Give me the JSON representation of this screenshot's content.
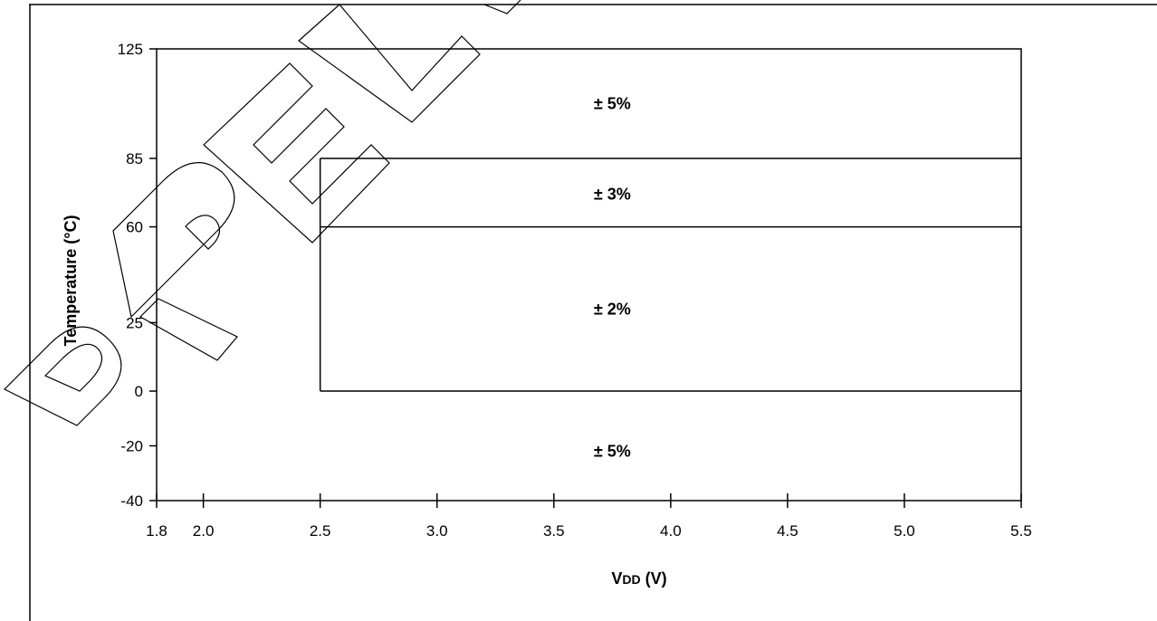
{
  "chart_data": {
    "type": "area",
    "xlabel": "VDD (V)",
    "xlabel_main": "V",
    "xlabel_sub": "DD",
    "xlabel_unit": " (V)",
    "ylabel": "Temperature (°C)",
    "xlim": [
      1.8,
      5.5
    ],
    "ylim": [
      -40,
      125
    ],
    "x_ticks": [
      {
        "value": 1.8,
        "label": "1.8"
      },
      {
        "value": 2.0,
        "label": "2.0"
      },
      {
        "value": 2.5,
        "label": "2.5"
      },
      {
        "value": 3.0,
        "label": "3.0"
      },
      {
        "value": 3.5,
        "label": "3.5"
      },
      {
        "value": 4.0,
        "label": "4.0"
      },
      {
        "value": 4.5,
        "label": "4.5"
      },
      {
        "value": 5.0,
        "label": "5.0"
      },
      {
        "value": 5.5,
        "label": "5.5"
      }
    ],
    "y_ticks": [
      {
        "value": 125,
        "label": "125"
      },
      {
        "value": 85,
        "label": "85"
      },
      {
        "value": 60,
        "label": "60"
      },
      {
        "value": 25,
        "label": "25"
      },
      {
        "value": 0,
        "label": "0"
      },
      {
        "value": -20,
        "label": "-20"
      },
      {
        "value": -40,
        "label": "-40"
      }
    ],
    "regions": [
      {
        "label": "± 5%",
        "x": [
          1.8,
          5.5
        ],
        "y": [
          85,
          125
        ],
        "label_at": [
          3.75,
          105
        ]
      },
      {
        "label": "± 3%",
        "x": [
          2.5,
          5.5
        ],
        "y": [
          60,
          85
        ],
        "label_at": [
          3.75,
          72
        ]
      },
      {
        "label": "± 2%",
        "x": [
          2.5,
          5.5
        ],
        "y": [
          0,
          60
        ],
        "label_at": [
          3.75,
          30
        ]
      },
      {
        "label": "± 5%",
        "x": [
          1.8,
          5.5
        ],
        "y": [
          -40,
          0
        ],
        "label_at": [
          3.75,
          -22
        ]
      }
    ],
    "boundaries": [
      {
        "x": [
          2.5,
          5.5
        ],
        "y": [
          85,
          85
        ]
      },
      {
        "x": [
          2.5,
          5.5
        ],
        "y": [
          60,
          60
        ]
      },
      {
        "x": [
          2.5,
          5.5
        ],
        "y": [
          0,
          0
        ]
      },
      {
        "x": [
          2.5,
          2.5
        ],
        "y": [
          0,
          85
        ]
      }
    ],
    "grid": false,
    "legend": "none"
  },
  "watermark": {
    "text": "PRELIMINARY",
    "style": "outlined diagonal"
  }
}
